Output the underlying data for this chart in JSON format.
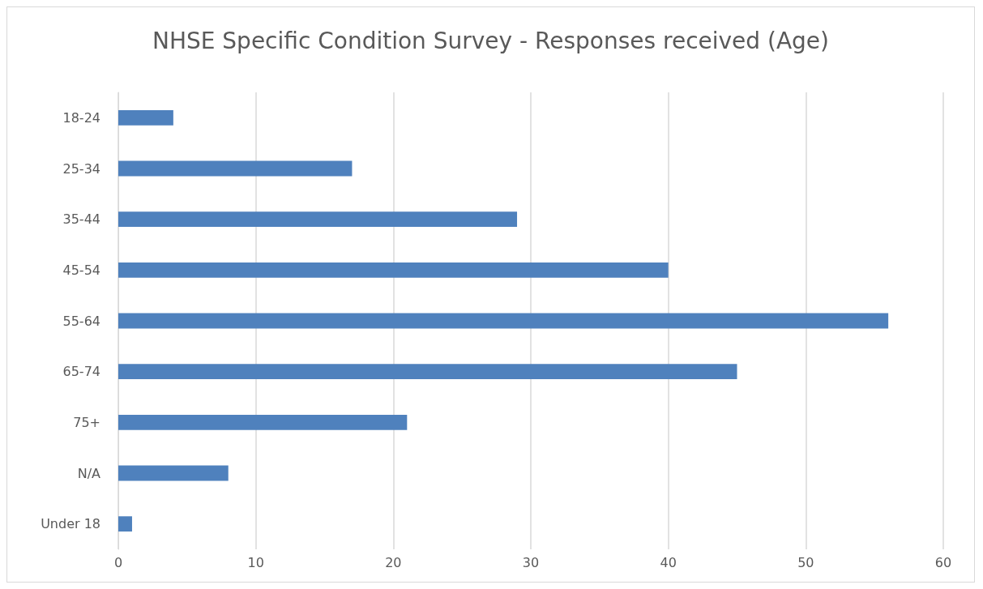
{
  "chart_data": {
    "type": "bar",
    "orientation": "horizontal",
    "title": "NHSE Specific Condition Survey - Responses received (Age)",
    "categories": [
      "18-24",
      "25-34",
      "35-44",
      "45-54",
      "55-64",
      "65-74",
      "75+",
      "N/A",
      "Under 18"
    ],
    "values": [
      4,
      17,
      29,
      40,
      56,
      45,
      21,
      8,
      1
    ],
    "color": "#4f81bd",
    "xlim": [
      0,
      60
    ],
    "xticks": [
      0,
      10,
      20,
      30,
      40,
      50,
      60
    ],
    "grid": "x"
  }
}
